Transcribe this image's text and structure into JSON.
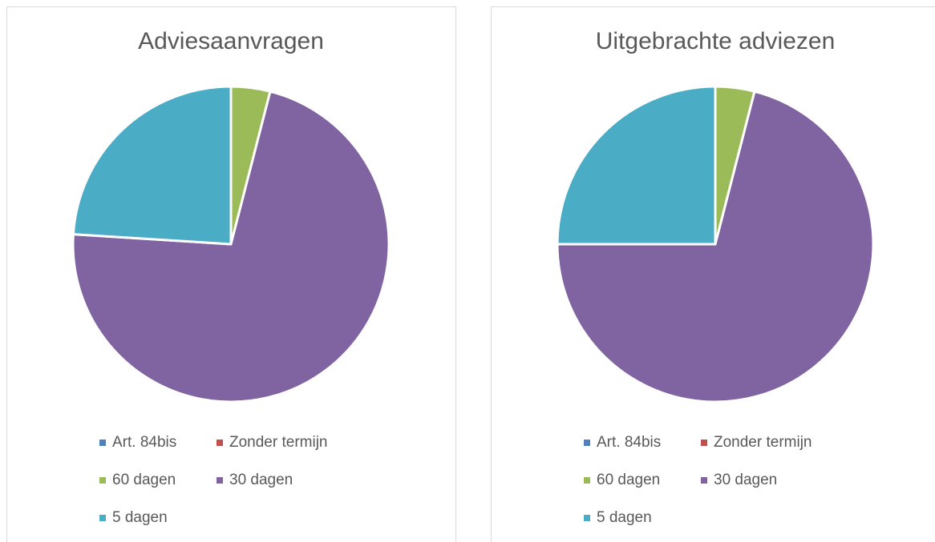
{
  "chart_data": [
    {
      "type": "pie",
      "title": "Adviesaanvragen",
      "categories": [
        "Art. 84bis",
        "Zonder termijn",
        "60 dagen",
        "30 dagen",
        "5 dagen"
      ],
      "values": [
        0,
        0,
        4,
        72,
        24
      ],
      "colors": [
        "#4f81bd",
        "#c0504d",
        "#9bbb59",
        "#8064a2",
        "#4bacc6"
      ]
    },
    {
      "type": "pie",
      "title": "Uitgebrachte adviezen",
      "categories": [
        "Art. 84bis",
        "Zonder termijn",
        "60 dagen",
        "30 dagen",
        "5 dagen"
      ],
      "values": [
        0,
        0,
        4,
        71,
        25
      ],
      "colors": [
        "#4f81bd",
        "#c0504d",
        "#9bbb59",
        "#8064a2",
        "#4bacc6"
      ]
    }
  ]
}
